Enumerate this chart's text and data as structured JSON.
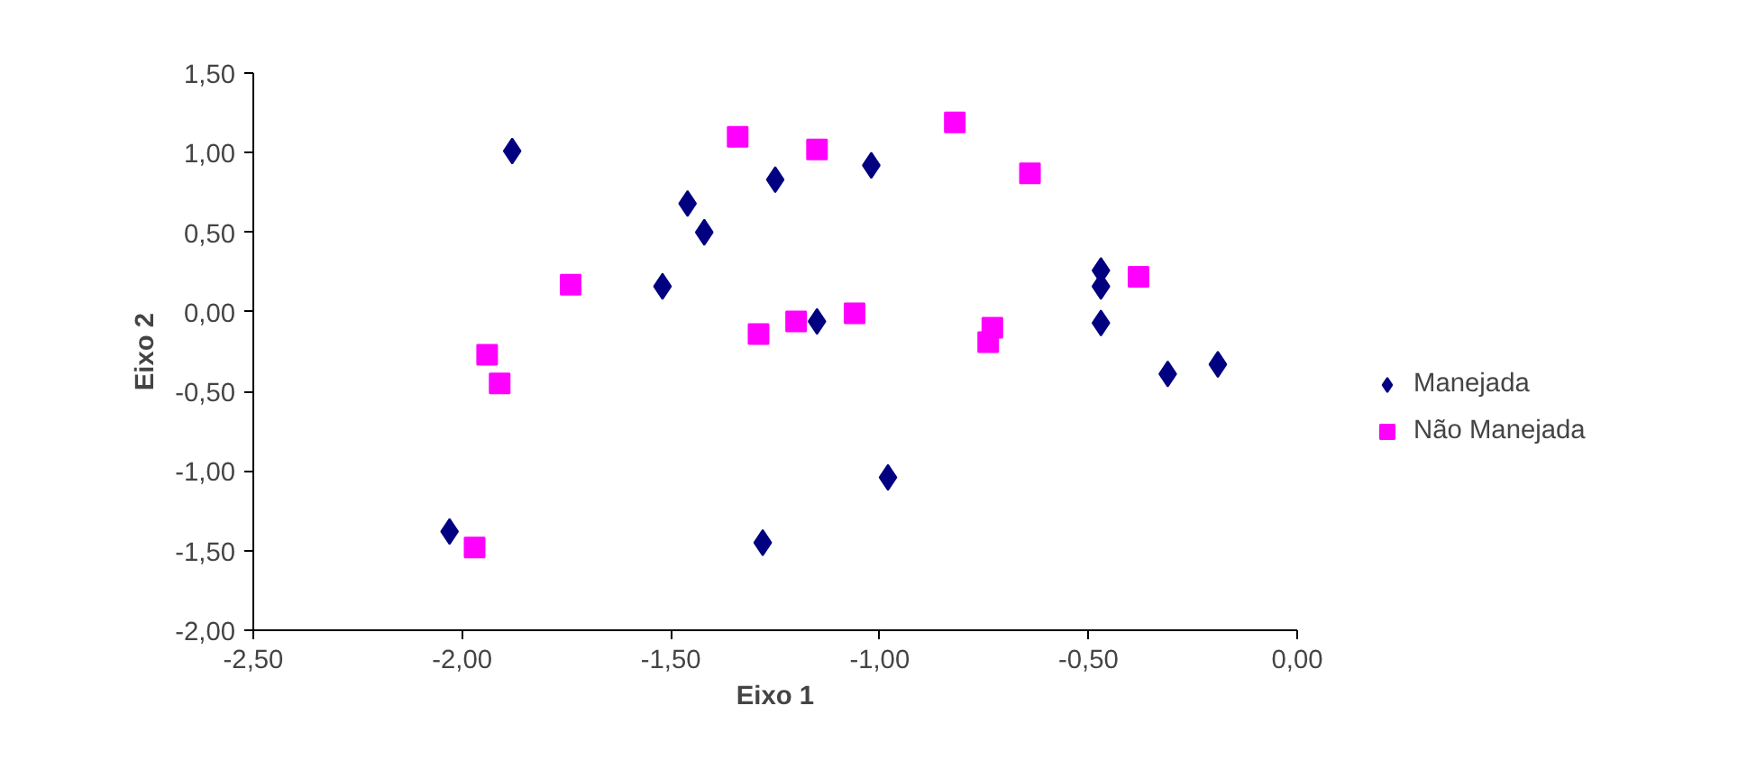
{
  "chart_data": {
    "type": "scatter",
    "xlabel": "Eixo 1",
    "ylabel": "Eixo 2",
    "legend": "right",
    "grid": false,
    "xlim": [
      -2.5,
      0
    ],
    "ylim": [
      -2,
      1.5
    ],
    "xticks": [
      {
        "value": -2.5,
        "label": "-2,50"
      },
      {
        "value": -2,
        "label": "-2,00"
      },
      {
        "value": -1.5,
        "label": "-1,50"
      },
      {
        "value": -1,
        "label": "-1,00"
      },
      {
        "value": -0.5,
        "label": "-0,50"
      },
      {
        "value": 0,
        "label": "0,00"
      }
    ],
    "yticks": [
      {
        "value": -2,
        "label": "-2,00"
      },
      {
        "value": -1.5,
        "label": "-1,50"
      },
      {
        "value": -1,
        "label": "-1,00"
      },
      {
        "value": -0.5,
        "label": "-0,50"
      },
      {
        "value": 0,
        "label": "0,00"
      },
      {
        "value": 0.5,
        "label": "0,50"
      },
      {
        "value": 1,
        "label": "1,00"
      },
      {
        "value": 1.5,
        "label": "1,50"
      }
    ],
    "series": [
      {
        "name": "Manejada",
        "color": "#000080",
        "marker": "diamond",
        "x": [
          -1.88,
          -1.46,
          -1.42,
          -1.25,
          -1.02,
          -1.52,
          -1.15,
          -0.47,
          -0.47,
          -0.47,
          -0.31,
          -0.19,
          -0.98,
          -1.28,
          -2.03
        ],
        "values": [
          1.01,
          0.68,
          0.5,
          0.83,
          0.92,
          0.16,
          -0.06,
          0.26,
          0.16,
          -0.07,
          -0.39,
          -0.33,
          -1.04,
          -1.45,
          -1.38
        ]
      },
      {
        "name": "Não Manejada",
        "color": "#ff00ff",
        "marker": "square",
        "x": [
          -1.34,
          -1.15,
          -0.82,
          -0.64,
          -1.74,
          -1.29,
          -1.2,
          -1.06,
          -0.73,
          -0.74,
          -0.38,
          -1.94,
          -1.91,
          -1.97
        ],
        "values": [
          1.1,
          1.02,
          1.19,
          0.87,
          0.17,
          -0.14,
          -0.06,
          -0.01,
          -0.1,
          -0.19,
          0.22,
          -0.27,
          -0.45,
          -1.48
        ]
      }
    ]
  }
}
